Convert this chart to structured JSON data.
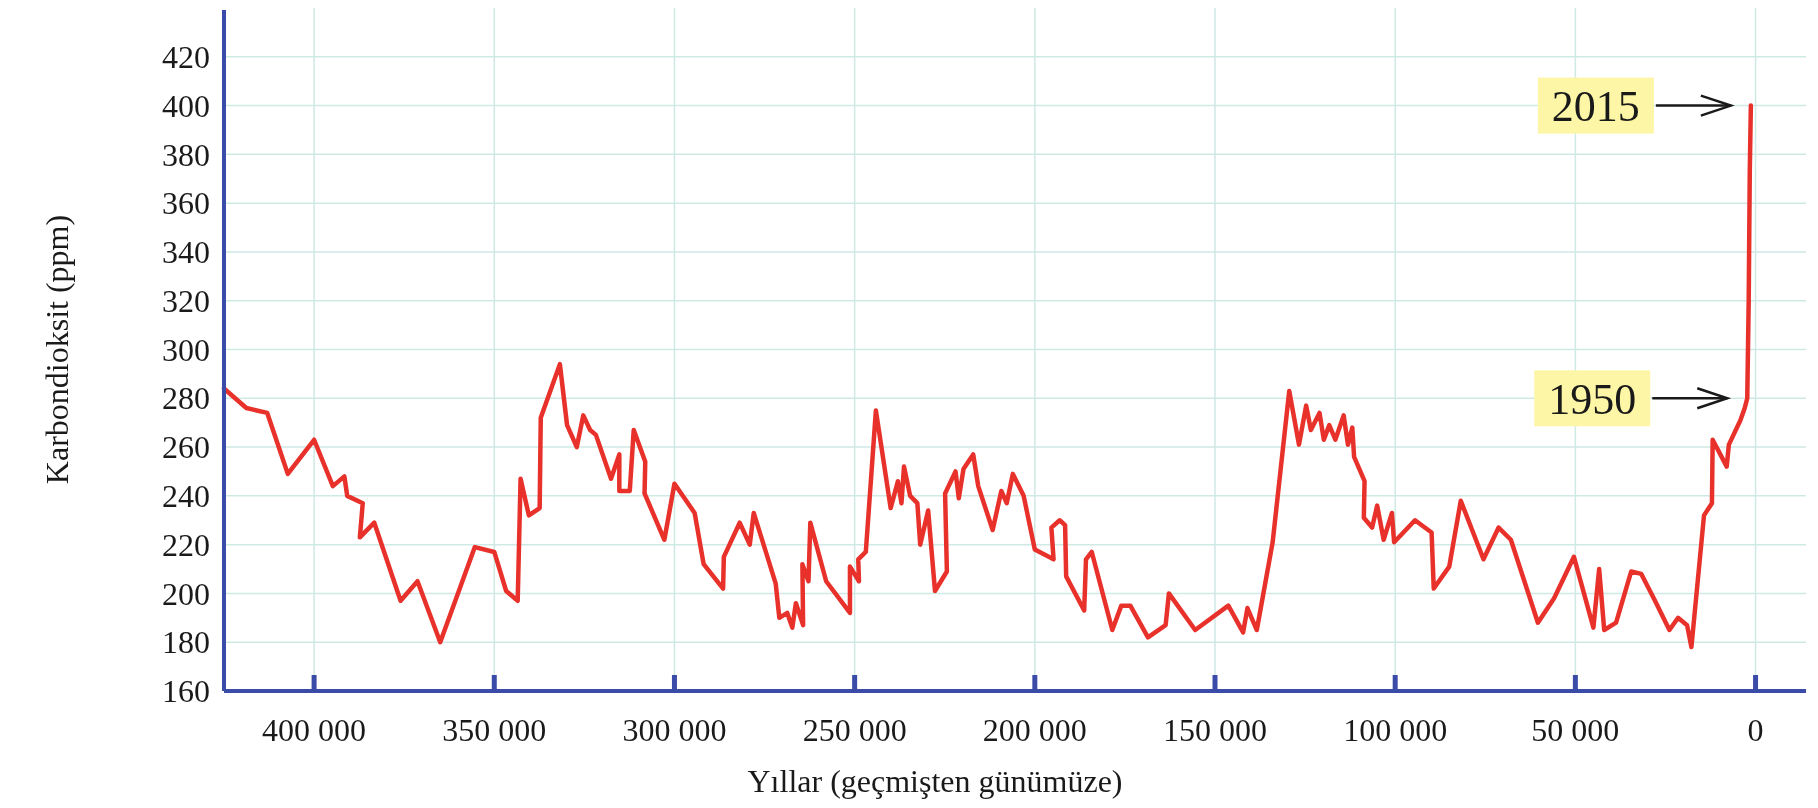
{
  "chart_data": {
    "type": "line",
    "xlabel": "Yıllar (geçmişten günümüze)",
    "ylabel": "Karbondioksit (ppm)",
    "xlim": [
      425000,
      -14000
    ],
    "ylim": [
      160,
      440
    ],
    "xticks": [
      {
        "value": 400000,
        "label": "400 000"
      },
      {
        "value": 350000,
        "label": "350 000"
      },
      {
        "value": 300000,
        "label": "300 000"
      },
      {
        "value": 250000,
        "label": "250 000"
      },
      {
        "value": 200000,
        "label": "200 000"
      },
      {
        "value": 150000,
        "label": "150 000"
      },
      {
        "value": 100000,
        "label": "100 000"
      },
      {
        "value": 50000,
        "label": "50 000"
      },
      0
    ],
    "yticks": [
      160,
      180,
      200,
      220,
      240,
      260,
      280,
      300,
      320,
      340,
      360,
      380,
      400,
      420
    ],
    "grid": true,
    "marker": "none",
    "line_style": "solid",
    "series": [
      {
        "color": "#e8312a",
        "x": [
          425000,
          418800,
          413000,
          407300,
          400000,
          394800,
          391600,
          390800,
          386500,
          387300,
          383300,
          376000,
          371300,
          365000,
          355400,
          350000,
          346700,
          343500,
          342700,
          340400,
          337400,
          337100,
          331800,
          329800,
          327100,
          325300,
          323400,
          321800,
          317600,
          315300,
          315300,
          312400,
          311300,
          308100,
          308300,
          302800,
          300000,
          294400,
          291900,
          286500,
          286300,
          281900,
          279100,
          278000,
          271900,
          270900,
          268700,
          267300,
          266300,
          264300,
          264500,
          262800,
          262300,
          257900,
          251300,
          251300,
          248800,
          249000,
          246900,
          244100,
          240000,
          238000,
          237000,
          236300,
          234600,
          232600,
          231800,
          229600,
          227700,
          224400,
          224900,
          222000,
          221100,
          219800,
          217100,
          215700,
          211700,
          209300,
          207800,
          206100,
          203100,
          200000,
          194800,
          195400,
          193100,
          191600,
          191300,
          186300,
          185800,
          184200,
          178500,
          176000,
          173500,
          168600,
          163700,
          162800,
          155500,
          146300,
          142200,
          141000,
          138400,
          134000,
          129400,
          126700,
          124700,
          123400,
          121000,
          119800,
          118300,
          116600,
          114300,
          113100,
          111900,
          111400,
          108500,
          108700,
          106400,
          105000,
          103200,
          100900,
          100300,
          94500,
          89900,
          89300,
          85000,
          81800,
          75500,
          71300,
          67900,
          60400,
          55900,
          50400,
          45000,
          43400,
          42000,
          38700,
          34500,
          31700,
          27900,
          23900,
          21500,
          19000,
          17800,
          14300,
          12100,
          11900,
          8000,
          7400,
          4200,
          3000,
          2300,
          1900,
          1600,
          1300
        ],
        "values": [
          284,
          276,
          274,
          249,
          263,
          244,
          248,
          240,
          237,
          223,
          229,
          197,
          205,
          180,
          219,
          217,
          201,
          197,
          247,
          232,
          235,
          272,
          294,
          269,
          260,
          273,
          267,
          265,
          247,
          257,
          242,
          242,
          267,
          254,
          241,
          222,
          245,
          233,
          212,
          202,
          215,
          229,
          220,
          233,
          204,
          190,
          192,
          186,
          196,
          187,
          212,
          205,
          229,
          205,
          192,
          211,
          205,
          214,
          217,
          275,
          235,
          246,
          237,
          252,
          240,
          237,
          220,
          234,
          201,
          209,
          241,
          250,
          239,
          251,
          257,
          244,
          226,
          242,
          237,
          249,
          240,
          218,
          214,
          227,
          230,
          228,
          207,
          193,
          214,
          217,
          185,
          195,
          195,
          182,
          187,
          200,
          185,
          195,
          184,
          194,
          185,
          221,
          283,
          261,
          277,
          267,
          274,
          263,
          269,
          263,
          273,
          261,
          268,
          256,
          246,
          231,
          227,
          236,
          222,
          233,
          221,
          230,
          225,
          202,
          211,
          238,
          214,
          227,
          222,
          188,
          198,
          215,
          186,
          210,
          185,
          188,
          209,
          208,
          197,
          185,
          190,
          187,
          178,
          232,
          237,
          263,
          252,
          261,
          271,
          276,
          280,
          320,
          373,
          400
        ]
      }
    ],
    "annotations": [
      {
        "text": "2015",
        "x": 1300,
        "y": 400
      },
      {
        "text": "1950",
        "x": 2300,
        "y": 280
      }
    ]
  }
}
